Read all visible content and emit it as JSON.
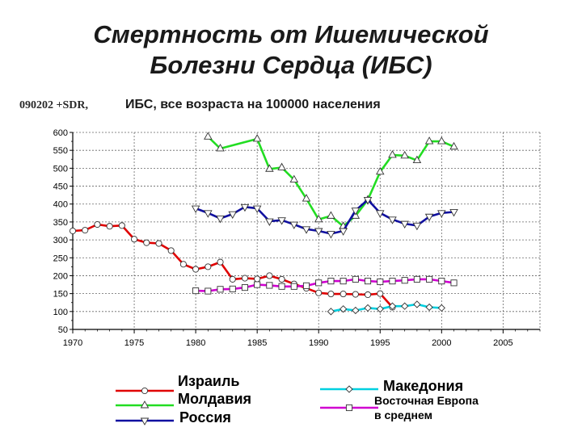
{
  "slide": {
    "title_line1": "Смертность от Ишемической",
    "title_line2": "Болезни Сердца (ИБС)",
    "code_label": "090202 +SDR,"
  },
  "chart_data": {
    "type": "line",
    "title": "ИБС, все возраста на 100000 населения",
    "xlabel": "",
    "ylabel": "",
    "xlim": [
      1970,
      2008
    ],
    "ylim": [
      50,
      600
    ],
    "x_ticks": [
      1970,
      1975,
      1980,
      1985,
      1990,
      1995,
      2000,
      2005
    ],
    "y_ticks": [
      50,
      100,
      150,
      200,
      250,
      300,
      350,
      400,
      450,
      500,
      550,
      600
    ],
    "grid": true,
    "legend_position": "bottom",
    "series": [
      {
        "name": "Израиль",
        "color": "#e00000",
        "marker": "circle",
        "x": [
          1970,
          1971,
          1972,
          1973,
          1974,
          1975,
          1976,
          1977,
          1978,
          1979,
          1980,
          1981,
          1982,
          1983,
          1984,
          1985,
          1986,
          1987,
          1988,
          1989,
          1990,
          1991,
          1992,
          1993,
          1994,
          1995,
          1996
        ],
        "y": [
          325,
          327,
          343,
          338,
          340,
          302,
          292,
          290,
          270,
          232,
          218,
          225,
          238,
          190,
          193,
          191,
          200,
          190,
          177,
          165,
          152,
          149,
          149,
          148,
          147,
          150,
          112
        ]
      },
      {
        "name": "Молдавия",
        "color": "#22dd22",
        "marker": "triangle-up",
        "x": [
          1981,
          1982,
          1985,
          1986,
          1987,
          1988,
          1989,
          1990,
          1991,
          1992,
          1993,
          1994,
          1995,
          1996,
          1997,
          1998,
          1999,
          2000,
          2001
        ],
        "y": [
          588,
          555,
          582,
          498,
          502,
          468,
          415,
          357,
          367,
          338,
          367,
          412,
          490,
          537,
          535,
          522,
          575,
          575,
          560
        ]
      },
      {
        "name": "Россия",
        "color": "#1010a0",
        "marker": "triangle-down",
        "x": [
          1980,
          1981,
          1982,
          1983,
          1984,
          1985,
          1986,
          1987,
          1988,
          1989,
          1990,
          1991,
          1992,
          1993,
          1994,
          1995,
          1996,
          1997,
          1998,
          1999,
          2000,
          2001
        ],
        "y": [
          388,
          375,
          360,
          372,
          392,
          388,
          352,
          355,
          343,
          330,
          325,
          317,
          325,
          382,
          412,
          375,
          357,
          345,
          340,
          365,
          375,
          378
        ]
      },
      {
        "name": "Македония",
        "color": "#00d0e0",
        "marker": "diamond",
        "x": [
          1991,
          1992,
          1993,
          1994,
          1995,
          1996,
          1997,
          1998,
          1999,
          2000
        ],
        "y": [
          100,
          107,
          103,
          110,
          107,
          115,
          115,
          120,
          112,
          110
        ]
      },
      {
        "name": "Восточная Европа в среднем",
        "name_line1": "Восточная Европа",
        "name_line2": "в среднем",
        "color": "#d000d0",
        "marker": "square",
        "x": [
          1980,
          1981,
          1982,
          1983,
          1984,
          1985,
          1986,
          1987,
          1988,
          1989,
          1990,
          1991,
          1992,
          1993,
          1994,
          1995,
          1996,
          1997,
          1998,
          1999,
          2000,
          2001
        ],
        "y": [
          158,
          157,
          162,
          163,
          167,
          175,
          173,
          170,
          170,
          172,
          180,
          185,
          185,
          190,
          185,
          183,
          185,
          187,
          190,
          190,
          185,
          180
        ]
      }
    ]
  }
}
